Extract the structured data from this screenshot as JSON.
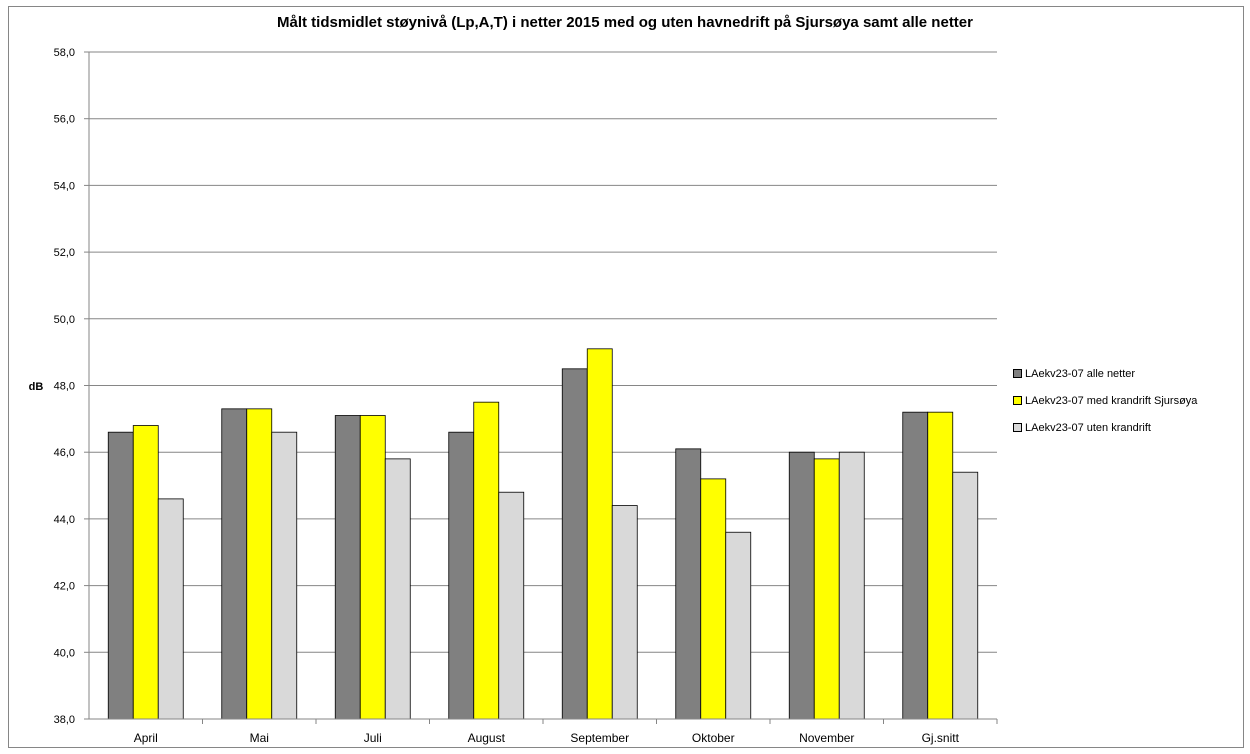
{
  "chart_data": {
    "type": "bar",
    "title": "Målt tidsmidlet støynivå (Lp,A,T) i netter 2015 med og uten havnedrift på Sjursøya samt alle netter",
    "xlabel": "",
    "ylabel": "dB",
    "categories": [
      "April",
      "Mai",
      "Juli",
      "August",
      "September",
      "Oktober",
      "November",
      "Gj.snitt"
    ],
    "ylim": [
      38,
      58
    ],
    "yticks": [
      "38,0",
      "40,0",
      "42,0",
      "44,0",
      "46,0",
      "48,0",
      "50,0",
      "52,0",
      "54,0",
      "56,0",
      "58,0"
    ],
    "grid": true,
    "legend_position": "right",
    "series": [
      {
        "name": "LAekv23-07 alle netter",
        "color": "#808080",
        "values": [
          46.6,
          47.3,
          47.1,
          46.6,
          48.5,
          46.1,
          46.0,
          47.2
        ]
      },
      {
        "name": "LAekv23-07  med krandrift Sjursøya",
        "color": "#ffff00",
        "values": [
          46.8,
          47.3,
          47.1,
          47.5,
          49.1,
          45.2,
          45.8,
          47.2
        ]
      },
      {
        "name": "LAekv23-07 uten krandrift",
        "color": "#d9d9d9",
        "values": [
          44.6,
          46.6,
          45.8,
          44.8,
          44.4,
          43.6,
          46.0,
          45.4
        ]
      }
    ]
  }
}
